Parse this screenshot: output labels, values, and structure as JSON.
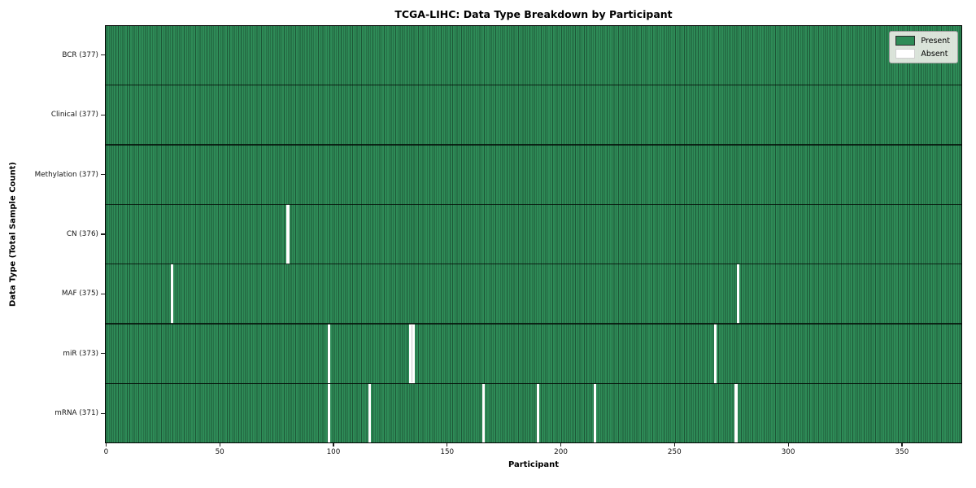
{
  "chart_data": {
    "type": "heatmap",
    "title": "TCGA-LIHC: Data Type Breakdown by Participant",
    "xlabel": "Participant",
    "ylabel": "Data Type (Total Sample Count)",
    "total_participants": 377,
    "x_ticks": [
      0,
      50,
      100,
      150,
      200,
      250,
      300,
      350
    ],
    "xlim": [
      -0.5,
      376.5
    ],
    "grid": false,
    "legend_position": "upper right",
    "legend": [
      {
        "label": "Present",
        "color": "#2e8b57"
      },
      {
        "label": "Absent",
        "color": "#ffffff"
      }
    ],
    "rows": [
      {
        "label": "BCR (377)",
        "data_type": "BCR",
        "count": 377,
        "absent_participants": []
      },
      {
        "label": "Clinical (377)",
        "data_type": "Clinical",
        "count": 377,
        "absent_participants": []
      },
      {
        "label": "Methylation (377)",
        "data_type": "Methylation",
        "count": 377,
        "absent_participants": []
      },
      {
        "label": "CN (376)",
        "data_type": "CN",
        "count": 376,
        "absent_participants": [
          80
        ]
      },
      {
        "label": "MAF (375)",
        "data_type": "MAF",
        "count": 375,
        "absent_participants": [
          29,
          278
        ]
      },
      {
        "label": "miR (373)",
        "data_type": "miR",
        "count": 373,
        "absent_participants": [
          98,
          134,
          135,
          268
        ]
      },
      {
        "label": "mRNA (371)",
        "data_type": "mRNA",
        "count": 371,
        "absent_participants": [
          98,
          116,
          166,
          190,
          215,
          277
        ]
      }
    ],
    "colors": {
      "present": "#2e8b57",
      "absent": "#ffffff",
      "cell_edge": "#1d5737",
      "row_separator": "#0d1a10",
      "frame": "#000000"
    }
  }
}
